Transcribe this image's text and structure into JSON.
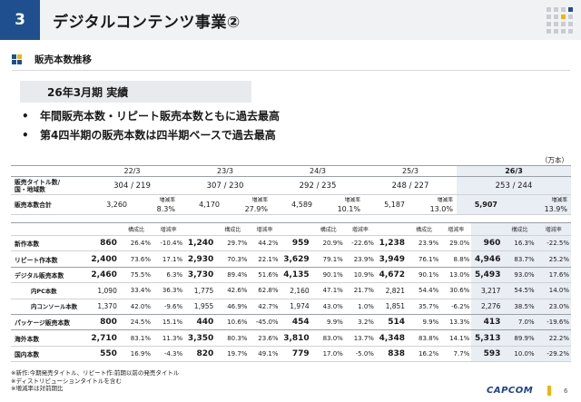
{
  "header": {
    "section_number": "3",
    "title": "デジタルコンテンツ事業②"
  },
  "subheader": {
    "title": "販売本数推移"
  },
  "banner": {
    "text": "26年3月期 実績"
  },
  "bullets": [
    "年間販売本数・リピート販売本数ともに過去最高",
    "第4四半期の販売本数は四半期ベースで過去最高"
  ],
  "unit": "（万本）",
  "summary_table": {
    "years": [
      "22/3",
      "23/3",
      "24/3",
      "25/3",
      "26/3"
    ],
    "titles_label": "販売タイトル数/\n国・地域数",
    "titles_values": [
      "304 / 219",
      "307 / 230",
      "292 / 235",
      "248 / 227",
      "253 / 244"
    ],
    "total_label": "販売本数合計",
    "total_values": [
      "3,260",
      "4,170",
      "4,589",
      "5,187",
      "5,907"
    ],
    "growth_label": "増減率",
    "growth_values": [
      "8.3%",
      "27.9%",
      "10.1%",
      "13.0%",
      "13.9%"
    ]
  },
  "detail_table": {
    "col_share": "構成比",
    "col_growth": "増減率",
    "rows": [
      {
        "label": "新作本数",
        "cells": [
          [
            "860",
            "26.4%",
            "-10.4%"
          ],
          [
            "1,240",
            "29.7%",
            "44.2%"
          ],
          [
            "959",
            "20.9%",
            "-22.6%"
          ],
          [
            "1,238",
            "23.9%",
            "29.0%"
          ],
          [
            "960",
            "16.3%",
            "-22.5%"
          ]
        ]
      },
      {
        "label": "リピート作本数",
        "cells": [
          [
            "2,400",
            "73.6%",
            "17.1%"
          ],
          [
            "2,930",
            "70.3%",
            "22.1%"
          ],
          [
            "3,629",
            "79.1%",
            "23.9%"
          ],
          [
            "3,949",
            "76.1%",
            "8.8%"
          ],
          [
            "4,946",
            "83.7%",
            "25.2%"
          ]
        ]
      },
      {
        "label": "デジタル販売本数",
        "cells": [
          [
            "2,460",
            "75.5%",
            "6.3%"
          ],
          [
            "3,730",
            "89.4%",
            "51.6%"
          ],
          [
            "4,135",
            "90.1%",
            "10.9%"
          ],
          [
            "4,672",
            "90.1%",
            "13.0%"
          ],
          [
            "5,493",
            "93.0%",
            "17.6%"
          ]
        ]
      },
      {
        "label": "内PC本数",
        "cells": [
          [
            "1,090",
            "33.4%",
            "36.3%"
          ],
          [
            "1,775",
            "42.6%",
            "62.8%"
          ],
          [
            "2,160",
            "47.1%",
            "21.7%"
          ],
          [
            "2,821",
            "54.4%",
            "30.6%"
          ],
          [
            "3,217",
            "54.5%",
            "14.0%"
          ]
        ]
      },
      {
        "label": "内コンソール本数",
        "cells": [
          [
            "1,370",
            "42.0%",
            "-9.6%"
          ],
          [
            "1,955",
            "46.9%",
            "42.7%"
          ],
          [
            "1,974",
            "43.0%",
            "1.0%"
          ],
          [
            "1,851",
            "35.7%",
            "-6.2%"
          ],
          [
            "2,276",
            "38.5%",
            "23.0%"
          ]
        ]
      },
      {
        "label": "パッケージ販売本数",
        "cells": [
          [
            "800",
            "24.5%",
            "15.1%"
          ],
          [
            "440",
            "10.6%",
            "-45.0%"
          ],
          [
            "454",
            "9.9%",
            "3.2%"
          ],
          [
            "514",
            "9.9%",
            "13.3%"
          ],
          [
            "413",
            "7.0%",
            "-19.6%"
          ]
        ]
      },
      {
        "label": "海外本数",
        "cells": [
          [
            "2,710",
            "83.1%",
            "11.3%"
          ],
          [
            "3,350",
            "80.3%",
            "23.6%"
          ],
          [
            "3,810",
            "83.0%",
            "13.7%"
          ],
          [
            "4,348",
            "83.8%",
            "14.1%"
          ],
          [
            "5,313",
            "89.9%",
            "22.2%"
          ]
        ]
      },
      {
        "label": "国内本数",
        "cells": [
          [
            "550",
            "16.9%",
            "-4.3%"
          ],
          [
            "820",
            "19.7%",
            "49.1%"
          ],
          [
            "779",
            "17.0%",
            "-5.0%"
          ],
          [
            "838",
            "16.2%",
            "7.7%"
          ],
          [
            "593",
            "10.0%",
            "-29.2%"
          ]
        ]
      }
    ]
  },
  "notes": [
    "※新作:今期発売タイトル、リピート作:前期以前の発売タイトル",
    "※ディストリビューションタイトルを含む",
    "※増減率は対前期比"
  ],
  "footer": {
    "logo": "CAPCOM",
    "page": "6"
  },
  "colors": {
    "primary": "#1f4f8f",
    "highlight": "#e9edf4",
    "accent": "#f2b400"
  }
}
